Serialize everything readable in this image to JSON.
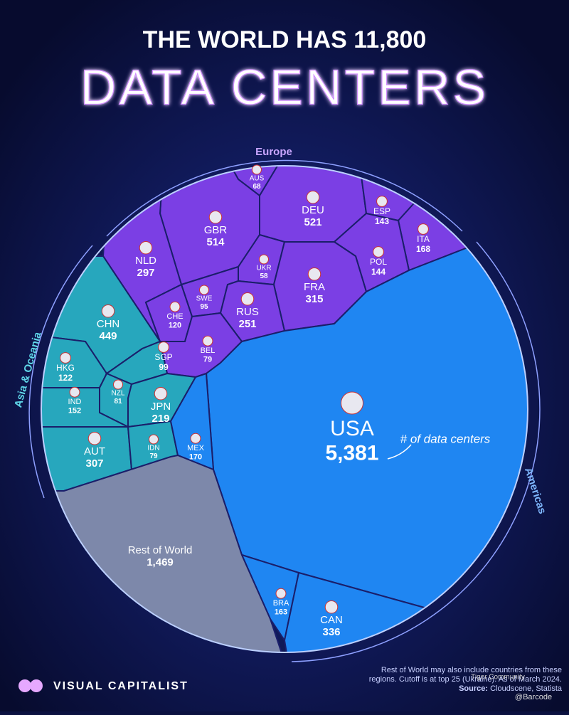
{
  "chart_data": {
    "type": "voronoi",
    "title": "THE WORLD HAS 11,800",
    "subtitle": "DATA CENTERS",
    "annotation": "# of data centers",
    "series": [
      {
        "name": "Europe",
        "color": "#7b3fe4",
        "categories": [
          "AUS",
          "DEU",
          "ESP",
          "ITA",
          "GBR",
          "NLD",
          "UKR",
          "POL",
          "FRA",
          "SWE",
          "CHE",
          "RUS",
          "BEL"
        ],
        "values": [
          68,
          521,
          143,
          168,
          514,
          297,
          58,
          144,
          315,
          95,
          120,
          251,
          79
        ],
        "value_labels": [
          "68",
          "521",
          "143",
          "168",
          "514",
          "297",
          "58",
          "144",
          "315",
          "95",
          "120",
          "251",
          "79"
        ]
      },
      {
        "name": "Asia & Oceania",
        "color": "#27a7bd",
        "categories": [
          "CHN",
          "HKG",
          "SGP",
          "NZL",
          "IND",
          "JPN",
          "AUT",
          "IDN"
        ],
        "values": [
          449,
          122,
          99,
          81,
          152,
          219,
          307,
          79
        ],
        "value_labels": [
          "449",
          "122",
          "99",
          "81",
          "152",
          "219",
          "307",
          "79"
        ]
      },
      {
        "name": "Americas",
        "color": "#1f86f2",
        "categories": [
          "USA",
          "MEX",
          "BRA",
          "CAN"
        ],
        "values": [
          5381,
          170,
          163,
          336
        ],
        "value_labels": [
          "5,381",
          "170",
          "163",
          "336"
        ]
      },
      {
        "color": "#7d88aa",
        "categories": [
          "Rest of World"
        ],
        "values": [
          1469
        ],
        "value_labels": [
          "1,469"
        ]
      }
    ],
    "note": "Rest of World may also include countries from these regions. Cutoff is at top 25 (Ukraine). As of March 2024.",
    "source_label": "Source:",
    "source": "Cloudscene, Statista",
    "brand": "VISUAL CAPITALIST",
    "watermarks": [
      "Tiger Community",
      "@Barcode"
    ]
  }
}
